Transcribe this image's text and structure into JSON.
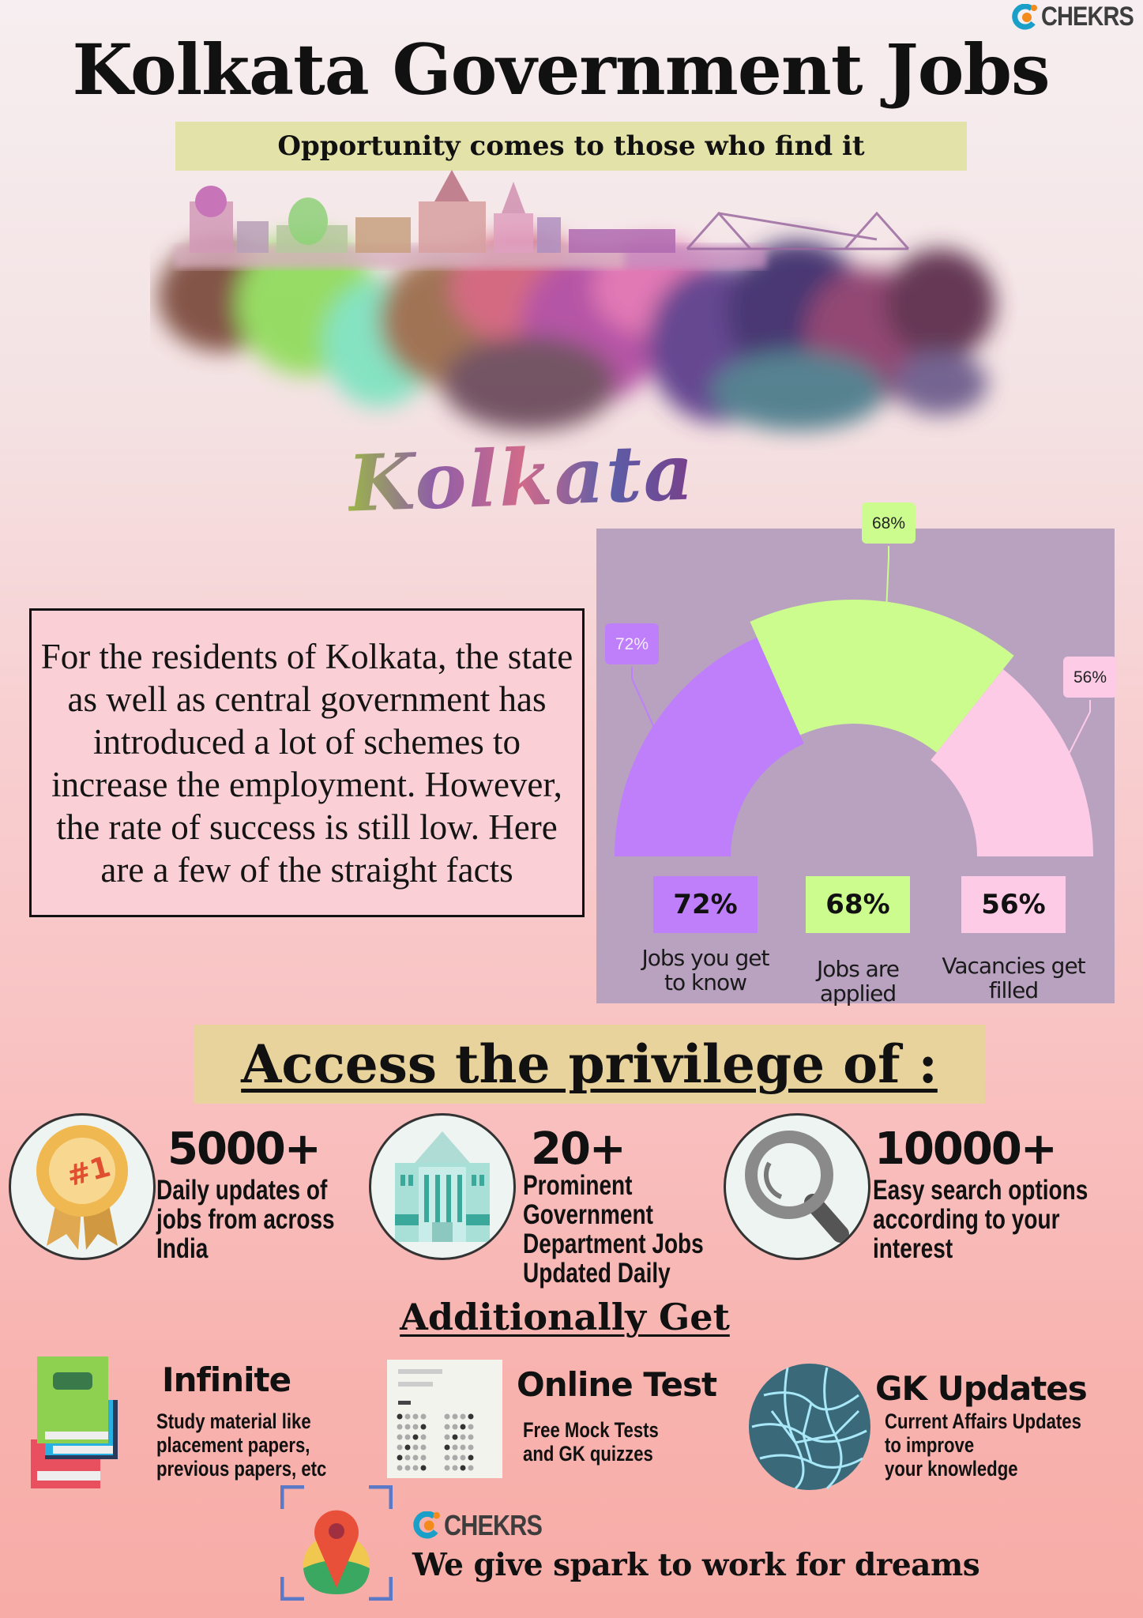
{
  "brand": {
    "name": "CHEKRS"
  },
  "header": {
    "title": "Kolkata Government Jobs",
    "subtitle": "Opportunity comes to those who find it",
    "city_lettering": "Kolkata"
  },
  "intro": {
    "text": "For the residents of Kolkata, the state as well as central government has introduced a lot of schemes to increase the employment. However, the rate of success is still low. Here are a few of the straight facts"
  },
  "chart_data": {
    "type": "semi-donut",
    "categories": [
      "Jobs you get to know",
      "Jobs are applied",
      "Vacancies get filled"
    ],
    "values": [
      72,
      68,
      56
    ],
    "value_labels": [
      "72%",
      "68%",
      "56%"
    ],
    "colors": [
      "#bf7ffa",
      "#ccfc8e",
      "#fdcbe6"
    ],
    "background": "#b8a2c0",
    "legend": "bottom"
  },
  "access": {
    "title": "Access the privilege of :",
    "stats": [
      {
        "number": "5000+",
        "description": [
          "Daily updates of",
          "jobs from across",
          "India"
        ],
        "icon": "medal-icon"
      },
      {
        "number": "20+",
        "description": [
          "Prominent",
          "Government",
          "Department Jobs",
          "Updated Daily"
        ],
        "icon": "government-building-icon"
      },
      {
        "number": "10000+",
        "description": [
          "Easy search options",
          "according to your",
          "interest"
        ],
        "icon": "magnifier-icon"
      }
    ]
  },
  "additional": {
    "title": "Additionally Get",
    "items": [
      {
        "title": "Infinite",
        "description": [
          "Study material like",
          "placement papers,",
          "previous papers, etc"
        ],
        "icon": "books-icon"
      },
      {
        "title": "Online Test",
        "description": [
          "Free Mock Tests",
          "and GK quizzes"
        ],
        "icon": "test-sheet-icon"
      },
      {
        "title": "GK Updates",
        "description": [
          "Current Affairs Updates",
          "to improve",
          "your knowledge"
        ],
        "icon": "globe-icon"
      }
    ]
  },
  "footer": {
    "tagline": "We give spark to work for dreams",
    "icon": "location-pin-icon"
  }
}
